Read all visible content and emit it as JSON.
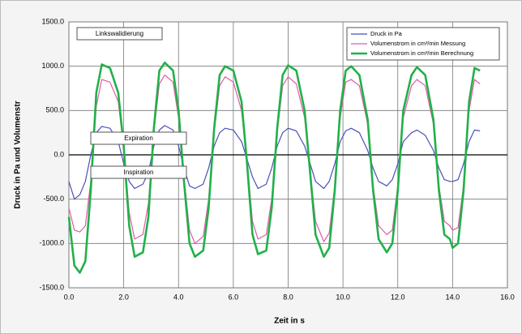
{
  "chart_data": {
    "type": "line",
    "xlabel": "Zeit in s",
    "ylabel": "Druck in Pa und Volumenstr",
    "annotations": [
      "Linkswalidierung",
      "Expiration",
      "Inspiration"
    ],
    "xlim": [
      0,
      16
    ],
    "ylim": [
      -1500,
      1500
    ],
    "xticks": [
      {
        "value": 0,
        "label": "0.0"
      },
      {
        "value": 2,
        "label": "2.0"
      },
      {
        "value": 4,
        "label": "4.0"
      },
      {
        "value": 6,
        "label": "6.0"
      },
      {
        "value": 8,
        "label": "8.0"
      },
      {
        "value": 10,
        "label": "10.0"
      },
      {
        "value": 12,
        "label": "12.0"
      },
      {
        "value": 14,
        "label": "14.0"
      },
      {
        "value": 16,
        "label": "16.0"
      }
    ],
    "yticks": [
      {
        "value": -1500,
        "label": "-1500.0"
      },
      {
        "value": -1000,
        "label": "-1000.0"
      },
      {
        "value": -500,
        "label": "-500.0"
      },
      {
        "value": 0,
        "label": "0.0"
      },
      {
        "value": 500,
        "label": "500.0"
      },
      {
        "value": 1000,
        "label": "1000.0"
      },
      {
        "value": 1500,
        "label": "1500.0"
      }
    ],
    "grid": true,
    "legend": "upper right",
    "x": [
      0.0,
      0.2,
      0.4,
      0.6,
      0.8,
      1.0,
      1.2,
      1.5,
      1.8,
      2.0,
      2.2,
      2.4,
      2.7,
      2.9,
      3.1,
      3.3,
      3.5,
      3.8,
      4.0,
      4.2,
      4.4,
      4.6,
      4.9,
      5.1,
      5.3,
      5.5,
      5.7,
      6.0,
      6.3,
      6.5,
      6.7,
      6.9,
      7.2,
      7.4,
      7.6,
      7.8,
      8.0,
      8.3,
      8.6,
      8.8,
      9.0,
      9.3,
      9.5,
      9.7,
      9.9,
      10.1,
      10.3,
      10.6,
      10.9,
      11.1,
      11.3,
      11.6,
      11.8,
      12.0,
      12.2,
      12.5,
      12.7,
      13.0,
      13.3,
      13.5,
      13.7,
      13.9,
      14.0,
      14.2,
      14.4,
      14.6,
      14.8,
      15.0
    ],
    "series": [
      {
        "name": "Druck in Pa",
        "color": "#4a4fb8",
        "values": [
          -300,
          -500,
          -450,
          -300,
          0,
          250,
          320,
          300,
          150,
          -100,
          -300,
          -380,
          -330,
          -200,
          100,
          280,
          330,
          280,
          100,
          -150,
          -350,
          -380,
          -330,
          -150,
          100,
          250,
          300,
          280,
          150,
          -50,
          -250,
          -380,
          -330,
          -150,
          100,
          250,
          300,
          270,
          100,
          -100,
          -300,
          -380,
          -300,
          -100,
          150,
          270,
          300,
          250,
          50,
          -150,
          -300,
          -350,
          -280,
          -100,
          150,
          250,
          280,
          220,
          50,
          -150,
          -280,
          -300,
          -300,
          -280,
          -100,
          150,
          280,
          270
        ]
      },
      {
        "name": "Volumenstrom in cm³/min Messung",
        "color": "#e05aa8",
        "values": [
          -600,
          -850,
          -870,
          -800,
          -300,
          550,
          850,
          820,
          600,
          80,
          -650,
          -950,
          -900,
          -550,
          250,
          800,
          900,
          820,
          420,
          -250,
          -850,
          -1000,
          -920,
          -500,
          250,
          780,
          880,
          820,
          500,
          -80,
          -750,
          -950,
          -900,
          -500,
          250,
          780,
          880,
          800,
          420,
          -180,
          -750,
          -980,
          -880,
          -350,
          420,
          820,
          850,
          780,
          350,
          -350,
          -800,
          -900,
          -850,
          -350,
          420,
          780,
          850,
          780,
          350,
          -350,
          -750,
          -800,
          -850,
          -820,
          -350,
          500,
          850,
          800
        ]
      },
      {
        "name": "Volumenstrom in cm³/min Berechnung",
        "color": "#22b04a",
        "values": [
          -700,
          -1250,
          -1330,
          -1200,
          -400,
          700,
          1020,
          980,
          700,
          100,
          -800,
          -1150,
          -1100,
          -700,
          300,
          950,
          1040,
          950,
          500,
          -300,
          -1000,
          -1150,
          -1080,
          -600,
          300,
          900,
          1000,
          950,
          600,
          -100,
          -900,
          -1120,
          -1080,
          -600,
          300,
          900,
          1010,
          950,
          500,
          -200,
          -900,
          -1150,
          -1050,
          -400,
          500,
          950,
          1000,
          900,
          400,
          -400,
          -950,
          -1100,
          -1000,
          -400,
          500,
          900,
          990,
          900,
          400,
          -400,
          -900,
          -950,
          -1050,
          -1000,
          -400,
          600,
          980,
          950
        ]
      }
    ]
  }
}
